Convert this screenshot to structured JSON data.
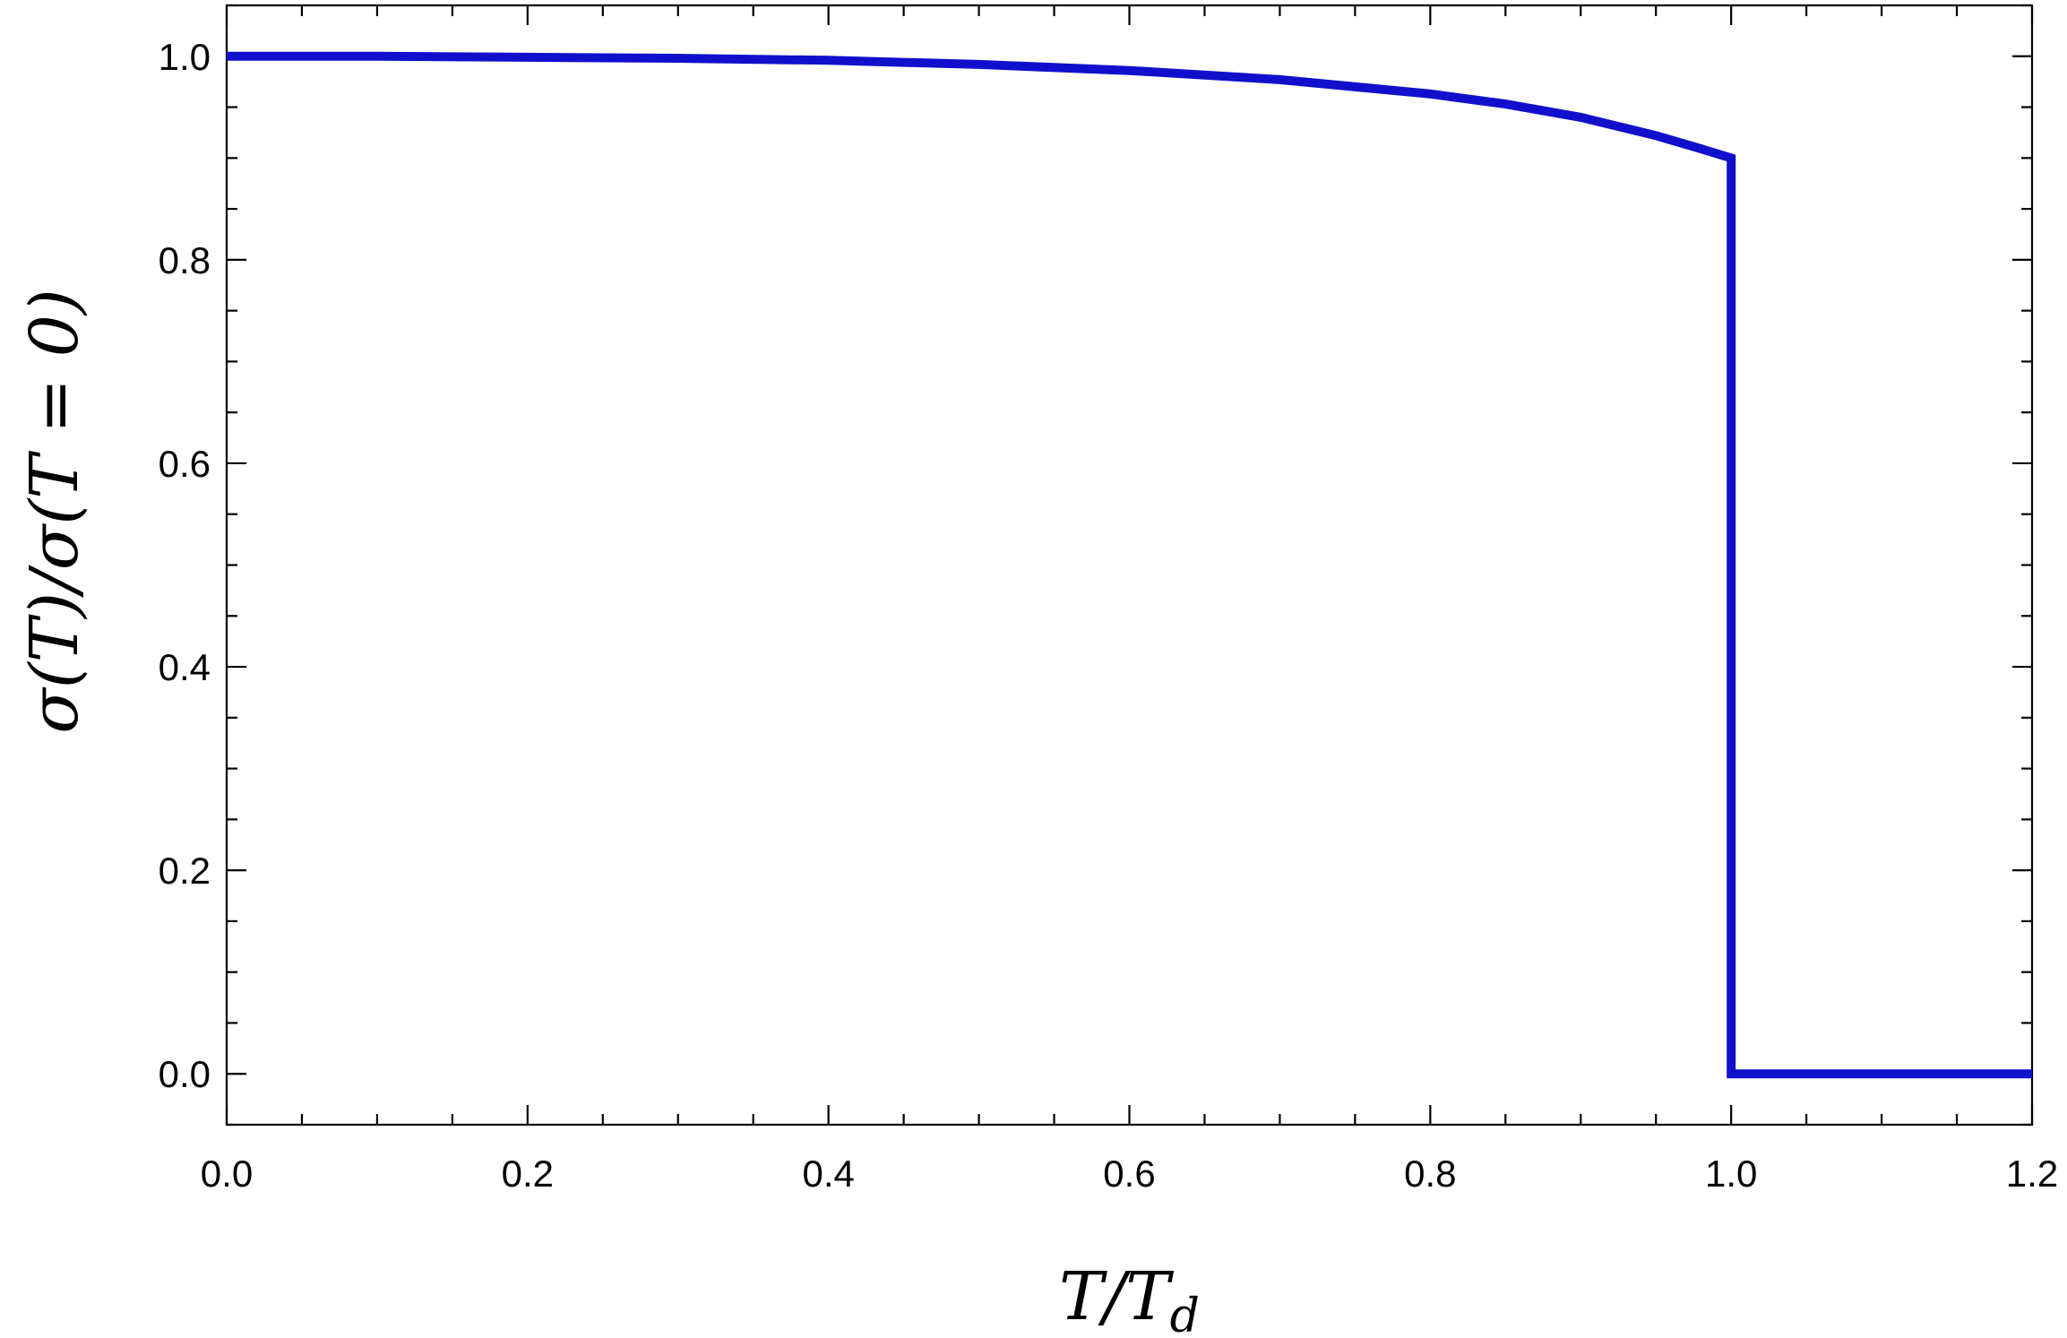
{
  "chart_data": {
    "type": "line",
    "title": "",
    "xlabel": "T/T_d",
    "ylabel": "σ(T)/σ(T = 0)",
    "xlim": [
      0,
      1.2
    ],
    "ylim": [
      -0.05,
      1.05
    ],
    "x_ticks": [
      "0.0",
      "0.2",
      "0.4",
      "0.6",
      "0.8",
      "1.0",
      "1.2"
    ],
    "y_ticks": [
      "0.0",
      "0.2",
      "0.4",
      "0.6",
      "0.8",
      "1.0"
    ],
    "grid": false,
    "legend": "none",
    "series": [
      {
        "color": "#1010cc",
        "x": [
          0.0,
          0.1,
          0.2,
          0.3,
          0.4,
          0.5,
          0.6,
          0.7,
          0.8,
          0.85,
          0.9,
          0.95,
          0.98,
          1.0,
          1.0,
          1.2
        ],
        "y": [
          1.0,
          1.0,
          0.999,
          0.998,
          0.996,
          0.992,
          0.986,
          0.977,
          0.963,
          0.953,
          0.94,
          0.922,
          0.909,
          0.9,
          0.0,
          0.0
        ]
      }
    ]
  }
}
